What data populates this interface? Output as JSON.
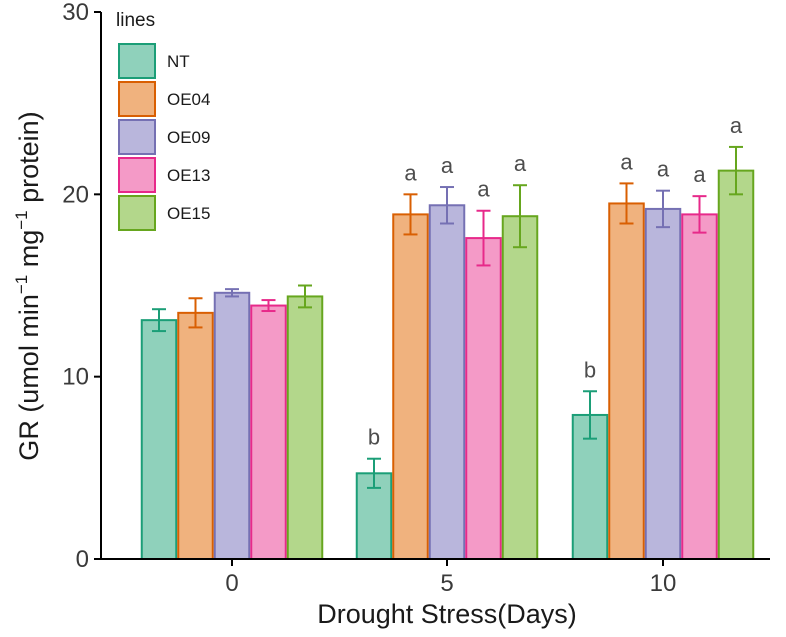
{
  "chart_data": {
    "type": "bar",
    "title": "",
    "xlabel": "Drought Stress(Days)",
    "ylabel_main": "GR (umol min",
    "ylabel_sup1": "−1",
    "ylabel_mid": " mg",
    "ylabel_sup2": "−1",
    "ylabel_end": " protein)",
    "ylim": [
      0,
      30
    ],
    "yticks": [
      0,
      10,
      20,
      30
    ],
    "categories": [
      "0",
      "5",
      "10"
    ],
    "legend_title": "lines",
    "legend_position": "top-left",
    "series": [
      {
        "name": "NT",
        "fill": "#8fd1bb",
        "stroke": "#1b9e77",
        "values": [
          13.1,
          4.7,
          7.9
        ],
        "errors": [
          0.6,
          0.8,
          1.3
        ],
        "labels": [
          "",
          "b",
          "b"
        ]
      },
      {
        "name": "OE04",
        "fill": "#f0b27e",
        "stroke": "#d95f02",
        "values": [
          13.5,
          18.9,
          19.5
        ],
        "errors": [
          0.8,
          1.1,
          1.1
        ],
        "labels": [
          "",
          "a",
          "a"
        ]
      },
      {
        "name": "OE09",
        "fill": "#b9b6dc",
        "stroke": "#7570b3",
        "values": [
          14.6,
          19.4,
          19.2
        ],
        "errors": [
          0.2,
          1.0,
          1.0
        ],
        "labels": [
          "",
          "a",
          "a"
        ]
      },
      {
        "name": "OE13",
        "fill": "#f49ac7",
        "stroke": "#e7298a",
        "values": [
          13.9,
          17.6,
          18.9
        ],
        "errors": [
          0.3,
          1.5,
          1.0
        ],
        "labels": [
          "",
          "a",
          "a"
        ]
      },
      {
        "name": "OE15",
        "fill": "#b3d78b",
        "stroke": "#66a61e",
        "values": [
          14.4,
          18.8,
          21.3
        ],
        "errors": [
          0.6,
          1.7,
          1.3
        ],
        "labels": [
          "",
          "a",
          "a"
        ]
      }
    ]
  }
}
